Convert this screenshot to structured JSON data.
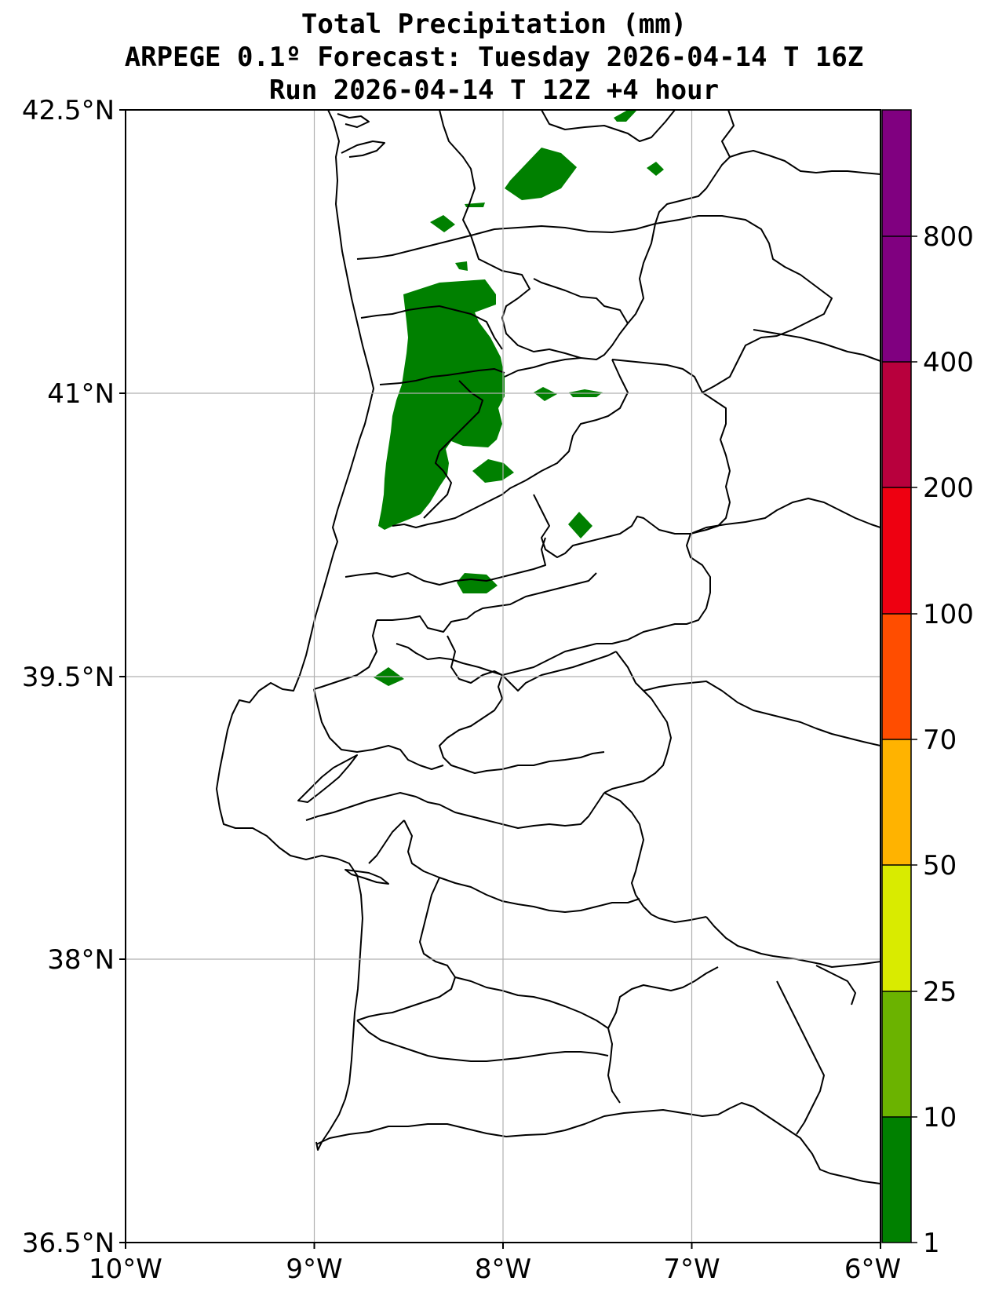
{
  "title": {
    "line1": "Total Precipitation (mm)",
    "line2": "ARPEGE 0.1º Forecast: Tuesday 2026-04-14 T 16Z",
    "line3": "Run 2026-04-14 T 12Z +4 hour"
  },
  "axes": {
    "lon_labels": [
      "10°W",
      "9°W",
      "8°W",
      "7°W",
      "6°W"
    ],
    "lat_labels": [
      "42.5°N",
      "41°N",
      "39.5°N",
      "38°N",
      "36.5°N"
    ],
    "lon_range": [
      -10,
      -6
    ],
    "lat_range": [
      36.5,
      42.5
    ],
    "grid": true
  },
  "colorbar": {
    "levels": [
      "1",
      "10",
      "25",
      "50",
      "70",
      "100",
      "200",
      "400",
      "800"
    ],
    "colors": [
      "#008000",
      "#6bb300",
      "#d9eb00",
      "#ffb300",
      "#ff4d00",
      "#ee0011",
      "#b8003d",
      "#800080"
    ]
  },
  "precip_color": "#008000"
}
